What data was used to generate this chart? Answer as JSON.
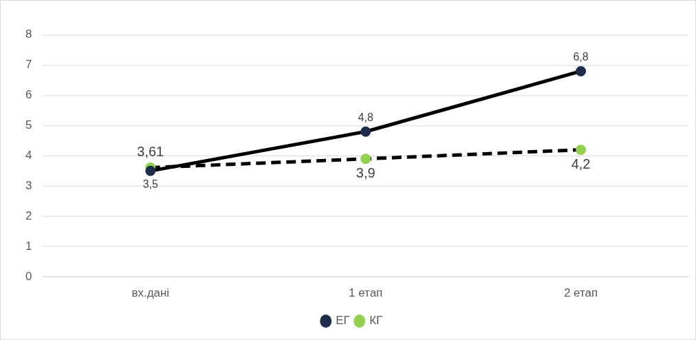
{
  "chart_data": {
    "type": "line",
    "categories": [
      "вх.дані",
      "1 етап",
      "2 етап"
    ],
    "series": [
      {
        "name": "ЕГ",
        "color": "#000000",
        "values": [
          3.5,
          4.8,
          6.8
        ],
        "value_labels": [
          "3,5",
          "4,8",
          "6,8"
        ],
        "line_style": "solid",
        "colors": [
          "#1f2d4d",
          "#1f2d4d",
          "#1f2d4d"
        ]
      },
      {
        "name": "КГ",
        "color": "#000000",
        "values": [
          3.61,
          3.9,
          4.2
        ],
        "value_labels": [
          "3,61",
          "3,9",
          "4,2"
        ],
        "line_style": "dashed",
        "colors": [
          "#92d050",
          "#92d050",
          "#92d050"
        ]
      }
    ],
    "ylim": [
      0,
      8
    ],
    "yticks": [
      0,
      1,
      2,
      3,
      4,
      5,
      6,
      7,
      8
    ],
    "grid": "y",
    "legend": "bottom",
    "marker": "circle"
  }
}
